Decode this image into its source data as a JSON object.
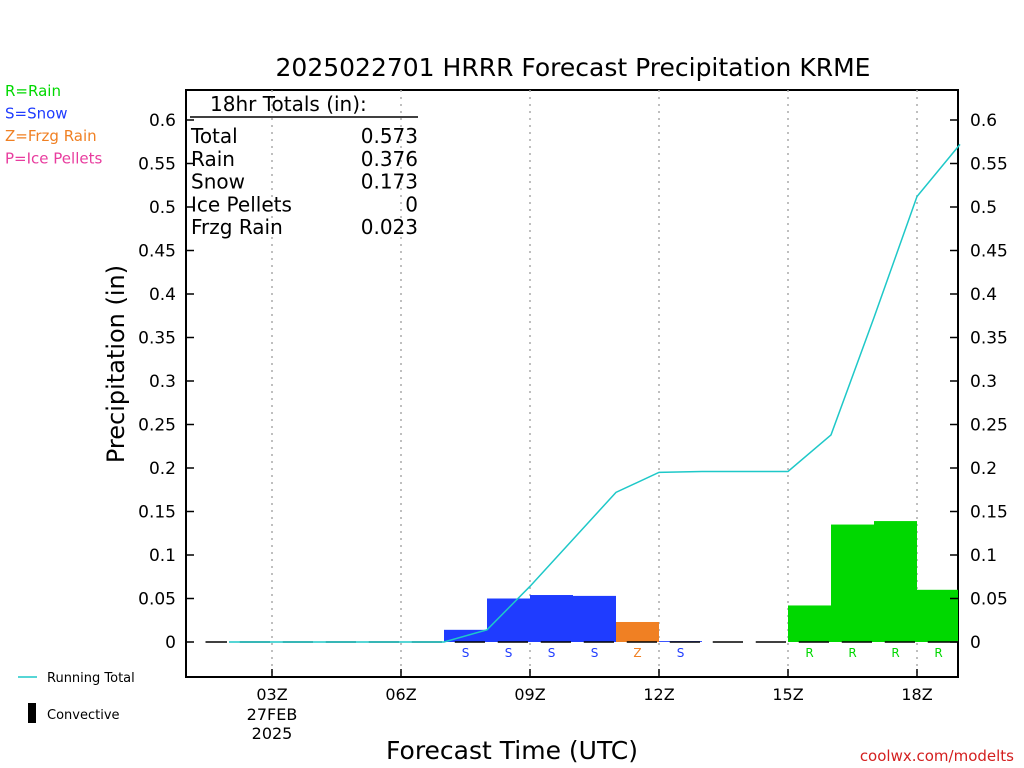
{
  "chart_data": {
    "type": "bar",
    "title": "2025022701 HRRR Forecast Precipitation KRME",
    "xlabel": "Forecast Time (UTC)",
    "ylabel": "Precipitation (in)",
    "ylim": [
      -0.05,
      0.63
    ],
    "yticks": [
      0,
      0.05,
      0.1,
      0.15,
      0.2,
      0.25,
      0.3,
      0.35,
      0.4,
      0.45,
      0.5,
      0.55,
      0.6
    ],
    "ytick_labels": [
      "0",
      "0.05",
      "0.1",
      "0.15",
      "0.2",
      "0.25",
      "0.3",
      "0.35",
      "0.4",
      "0.45",
      "0.5",
      "0.55",
      "0.6"
    ],
    "xlim": [
      1.3,
      19.0
    ],
    "xticks": [
      {
        "hour": 3,
        "label": "03Z",
        "sub1": "27FEB",
        "sub2": "2025"
      },
      {
        "hour": 6,
        "label": "06Z",
        "sub1": "",
        "sub2": ""
      },
      {
        "hour": 9,
        "label": "09Z",
        "sub1": "",
        "sub2": ""
      },
      {
        "hour": 12,
        "label": "12Z",
        "sub1": "",
        "sub2": ""
      },
      {
        "hour": 15,
        "label": "15Z",
        "sub1": "",
        "sub2": ""
      },
      {
        "hour": 18,
        "label": "18Z",
        "sub1": "",
        "sub2": ""
      }
    ],
    "grid": "vertical-dotted",
    "bars": [
      {
        "hour": 8,
        "value": 0.014,
        "ptype": "S"
      },
      {
        "hour": 9,
        "value": 0.05,
        "ptype": "S"
      },
      {
        "hour": 10,
        "value": 0.054,
        "ptype": "S"
      },
      {
        "hour": 11,
        "value": 0.053,
        "ptype": "S"
      },
      {
        "hour": 12,
        "value": 0.023,
        "ptype": "Z"
      },
      {
        "hour": 13,
        "value": 0.001,
        "ptype": "S"
      },
      {
        "hour": 16,
        "value": 0.042,
        "ptype": "R"
      },
      {
        "hour": 17,
        "value": 0.135,
        "ptype": "R"
      },
      {
        "hour": 18,
        "value": 0.139,
        "ptype": "R"
      },
      {
        "hour": 19,
        "value": 0.06,
        "ptype": "R"
      }
    ],
    "convective_hours": [
      1.5,
      2,
      3,
      4,
      5,
      6,
      7,
      8,
      9,
      10,
      11,
      12,
      13,
      14,
      15,
      16,
      17,
      18,
      19
    ],
    "running_total": {
      "name": "Running Total",
      "x": [
        2,
        3,
        4,
        5,
        6,
        7,
        8,
        9,
        10,
        11,
        12,
        13,
        14,
        15,
        16,
        17,
        18,
        19
      ],
      "values": [
        0,
        0,
        0,
        0,
        0,
        0,
        0.014,
        0.064,
        0.118,
        0.172,
        0.195,
        0.196,
        0.196,
        0.196,
        0.238,
        0.373,
        0.512,
        0.572
      ]
    },
    "colors": {
      "R": "#00d800",
      "S": "#1f3cff",
      "Z": "#f08023",
      "P": "#e83c9e",
      "running_total": "#1ec8c8",
      "convective": "#000000"
    },
    "totals_box": {
      "heading": "18hr Totals (in):",
      "rows": [
        {
          "label": "Total",
          "value": "0.573"
        },
        {
          "label": "Rain",
          "value": "0.376"
        },
        {
          "label": "Snow",
          "value": "0.173"
        },
        {
          "label": "Ice Pellets",
          "value": "0"
        },
        {
          "label": "Frzg Rain",
          "value": "0.023"
        }
      ]
    },
    "ptype_legend": [
      {
        "text": "R=Rain",
        "color": "#00d800"
      },
      {
        "text": "S=Snow",
        "color": "#1f3cff"
      },
      {
        "text": "Z=Frzg Rain",
        "color": "#f08023"
      },
      {
        "text": "P=Ice Pellets",
        "color": "#e83c9e"
      }
    ],
    "legend": {
      "running_total": "Running Total",
      "convective": "Convective"
    },
    "credit": "coolwx.com/modelts"
  }
}
